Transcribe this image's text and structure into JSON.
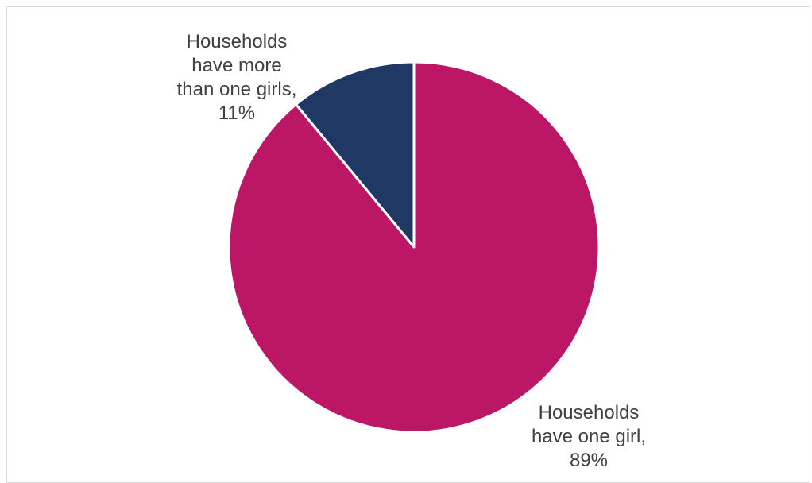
{
  "chart_data": {
    "type": "pie",
    "title": "",
    "start_angle_deg": 0,
    "direction": "clockwise",
    "slices": [
      {
        "label_lines": [
          "Households",
          "have more",
          "than one girls,",
          "11%"
        ],
        "category": "Households have more than one girls",
        "value": 11,
        "color": "#203864"
      },
      {
        "label_lines": [
          "Households",
          "have one girl,",
          "89%"
        ],
        "category": "Households have one girl",
        "value": 89,
        "color": "#BC1766"
      }
    ],
    "legend": "none",
    "slice_border_color": "#ffffff"
  }
}
